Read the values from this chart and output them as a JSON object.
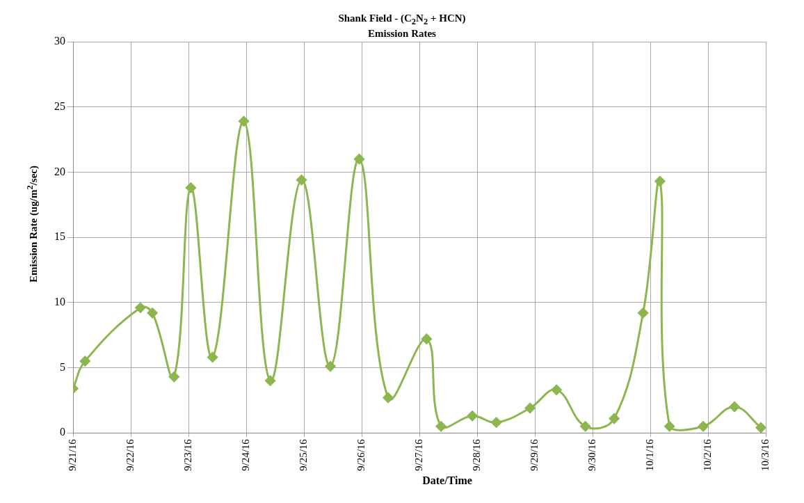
{
  "chart_data": {
    "type": "line",
    "title": "Shank Field - (C$_{2}$N$_{2}$ + HCN)\nEmission Rates",
    "xlabel": "Date/Time",
    "ylabel": "Emission Rate (ug/m$^{2}$/sec)",
    "x": [
      "--09-21T00:00",
      "--09-21T05:00",
      "--09-22T04:00",
      "--09-22T09:00",
      "--09-22T18:00",
      "--09-23T01:00",
      "--09-23T10:00",
      "--09-23T23:00",
      "--09-24T10:00",
      "--09-24T23:00",
      "--09-25T11:00",
      "--09-25T23:00",
      "--09-26T11:00",
      "--09-27T03:00",
      "--09-27T09:00",
      "--09-27T22:00",
      "--09-28T08:00",
      "--09-28T22:00",
      "--09-29T09:00",
      "--09-29T21:00",
      "--09-30T09:00",
      "--09-30T21:00",
      "--10-01T04:00",
      "--10-01T08:00",
      "--10-01T22:00",
      "--10-02T11:00",
      "--10-02T22:00"
    ],
    "series": [
      {
        "color": "#8db650",
        "values": [
          3.4,
          5.5,
          9.6,
          9.2,
          4.3,
          18.8,
          5.8,
          23.9,
          4.0,
          19.4,
          5.1,
          21.0,
          2.7,
          7.2,
          0.5,
          1.3,
          0.8,
          1.9,
          3.3,
          0.5,
          1.1,
          9.2,
          19.3,
          0.5,
          0.5,
          2.0,
          0.4
        ]
      }
    ],
    "xlim": [
      "--09-21",
      "--10-03"
    ],
    "xticks": [
      {
        "value": "--09-21",
        "label": "9/21/16"
      },
      {
        "value": "--09-22",
        "label": "9/22/16"
      },
      {
        "value": "--09-23",
        "label": "9/23/16"
      },
      {
        "value": "--09-24",
        "label": "9/24/16"
      },
      {
        "value": "--09-25",
        "label": "9/25/16"
      },
      {
        "value": "--09-26",
        "label": "9/26/16"
      },
      {
        "value": "--09-27",
        "label": "9/27/16"
      },
      {
        "value": "--09-28",
        "label": "9/28/16"
      },
      {
        "value": "--09-29",
        "label": "9/29/16"
      },
      {
        "value": "--09-30",
        "label": "9/30/16"
      },
      {
        "value": "--10-01",
        "label": "10/1/16"
      },
      {
        "value": "--10-02",
        "label": "10/2/16"
      },
      {
        "value": "--10-03",
        "label": "10/3/16"
      }
    ],
    "ylim": [
      0,
      30
    ],
    "yticks": [
      0,
      5,
      10,
      15,
      20,
      25,
      30
    ],
    "grid": true,
    "legend": false,
    "marker": "diamond",
    "line_style": "solid"
  }
}
